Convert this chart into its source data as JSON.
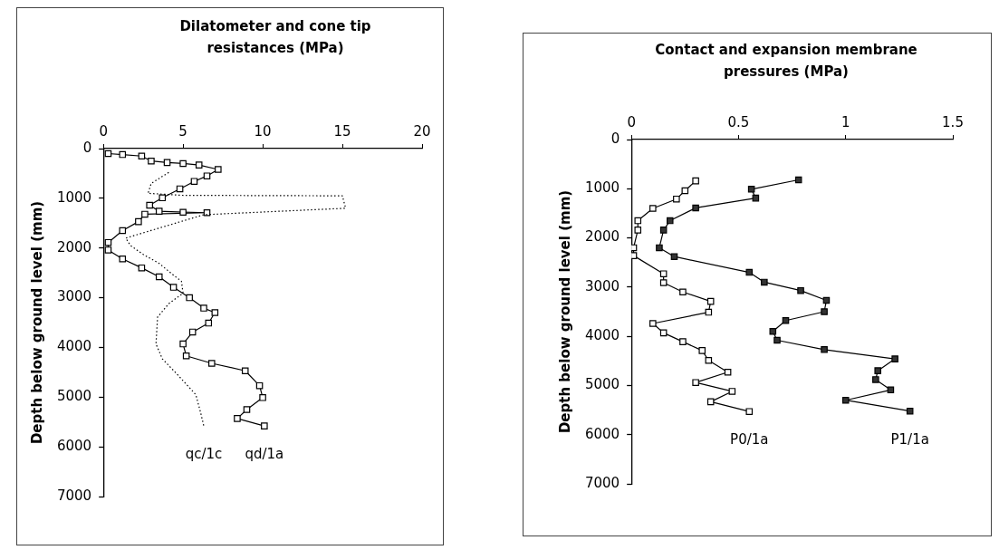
{
  "chart_data": [
    {
      "type": "line",
      "xlabel": "Dilatometer and cone tip resistances (MPa)",
      "ylabel": "Depth below ground level (mm)",
      "xlim": [
        0,
        20
      ],
      "xticks": [
        0,
        5,
        10,
        15,
        20
      ],
      "ylim": [
        7000,
        0
      ],
      "yticks": [
        0,
        1000,
        2000,
        3000,
        4000,
        5000,
        6000,
        7000
      ],
      "grid": false,
      "legend": false,
      "series": [
        {
          "name": "qc/1c",
          "color": "#000000",
          "marker": "none",
          "line_style": "dotted",
          "x": [
            4.1,
            3.0,
            2.8,
            5.0,
            15.0,
            15.2,
            6.3,
            1.4,
            1.7,
            2.5,
            3.5,
            4.3,
            4.9,
            5.0,
            4.1,
            3.4,
            3.3,
            3.7,
            4.6,
            5.8,
            6.1,
            6.3
          ],
          "values": [
            480,
            700,
            900,
            940,
            950,
            1200,
            1330,
            1800,
            1950,
            2130,
            2310,
            2520,
            2670,
            2910,
            3120,
            3390,
            3930,
            4230,
            4530,
            4950,
            5310,
            5580
          ]
        },
        {
          "name": "qd/1a",
          "color": "#ffffff",
          "marker": "square",
          "line_style": "solid",
          "x": [
            0.3,
            1.2,
            2.4,
            3.0,
            4.0,
            5.0,
            6.0,
            7.2,
            6.5,
            5.7,
            4.8,
            3.7,
            2.9,
            3.5,
            5.0,
            6.5,
            2.6,
            2.2,
            1.2,
            0.3,
            0.3,
            1.2,
            2.4,
            3.5,
            4.4,
            5.4,
            6.3,
            7.0,
            6.6,
            5.6,
            5.0,
            5.2,
            6.8,
            8.9,
            9.8,
            10.0,
            9.0,
            8.4,
            10.1
          ],
          "values": [
            100,
            120,
            150,
            250,
            280,
            300,
            330,
            420,
            550,
            660,
            810,
            990,
            1140,
            1260,
            1280,
            1290,
            1320,
            1470,
            1650,
            1890,
            2040,
            2220,
            2400,
            2580,
            2790,
            3000,
            3210,
            3300,
            3510,
            3690,
            3930,
            4170,
            4320,
            4470,
            4770,
            5010,
            5250,
            5430,
            5580
          ]
        }
      ]
    },
    {
      "type": "line",
      "xlabel": "Contact and expansion membrane pressures (MPa)",
      "ylabel": "Depth below ground level (mm)",
      "xlim": [
        0,
        1.5
      ],
      "xticks": [
        0,
        0.5,
        1,
        1.5
      ],
      "ylim": [
        7000,
        0
      ],
      "yticks": [
        0,
        1000,
        2000,
        3000,
        4000,
        5000,
        6000,
        7000
      ],
      "grid": false,
      "legend": false,
      "series": [
        {
          "name": "P0/1a",
          "color": "#ffffff",
          "marker": "square",
          "line_style": "solid",
          "x": [
            0.3,
            0.25,
            0.21,
            0.1,
            0.03,
            0.03,
            0.01,
            0.01,
            0.15,
            0.15,
            0.24,
            0.37,
            0.36,
            0.1,
            0.15,
            0.24,
            0.33,
            0.36,
            0.45,
            0.3,
            0.47,
            0.37,
            0.55
          ],
          "values": [
            840,
            1040,
            1210,
            1400,
            1650,
            1840,
            2200,
            2360,
            2730,
            2910,
            3100,
            3290,
            3510,
            3740,
            3930,
            4110,
            4290,
            4490,
            4730,
            4940,
            5120,
            5330,
            5530
          ]
        },
        {
          "name": "P1/1a",
          "color": "#333333",
          "marker": "square",
          "line_style": "solid",
          "x": [
            0.78,
            0.56,
            0.58,
            0.3,
            0.18,
            0.15,
            0.13,
            0.2,
            0.55,
            0.62,
            0.79,
            0.91,
            0.9,
            0.72,
            0.66,
            0.68,
            0.9,
            1.23,
            1.15,
            1.14,
            1.21,
            1.0,
            1.3
          ],
          "values": [
            820,
            1010,
            1190,
            1390,
            1650,
            1840,
            2200,
            2380,
            2700,
            2900,
            3070,
            3270,
            3500,
            3680,
            3900,
            4080,
            4270,
            4460,
            4700,
            4880,
            5090,
            5300,
            5520
          ]
        }
      ]
    }
  ]
}
